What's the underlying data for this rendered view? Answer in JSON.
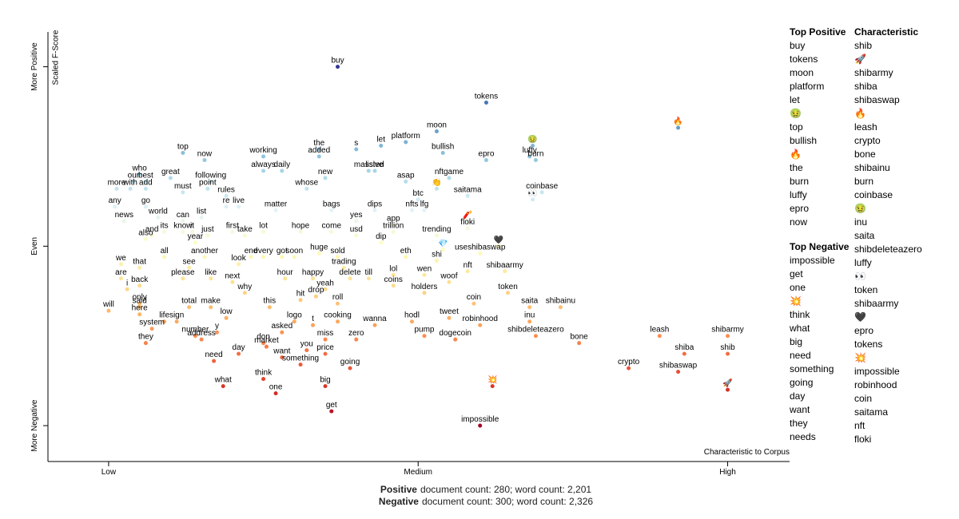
{
  "chart_data": {
    "type": "scatter",
    "ylabel": "Scaled F-Score",
    "xlabel": "Characteristic to Corpus",
    "xlim": [
      -0.098,
      1.1
    ],
    "ylim": [
      -0.1,
      1.097
    ],
    "xticks": [
      {
        "value": 0,
        "label": "Low"
      },
      {
        "value": 0.5,
        "label": "Medium"
      },
      {
        "value": 1,
        "label": "High"
      }
    ],
    "yticks": [
      {
        "value": 0,
        "label": "More Negative"
      },
      {
        "value": 0.5,
        "label": "Even"
      },
      {
        "value": 1,
        "label": "More Positive"
      }
    ],
    "grid": false,
    "color_scale": [
      "#a50026",
      "#d73027",
      "#f46d43",
      "#fdae61",
      "#fee090",
      "#ffffbf",
      "#e0f3f8",
      "#abd9e9",
      "#74add1",
      "#4575b4",
      "#313695"
    ],
    "labels": [
      "buy",
      "tokens",
      "moon",
      "platform",
      "bullish",
      "let",
      "s",
      "the",
      "added",
      "epro",
      "luffy",
      "🤢",
      "burn",
      "🔥",
      "top",
      "now",
      "who",
      "working",
      "always",
      "massive",
      "listed",
      "daily",
      "our",
      "best",
      "great",
      "following",
      "new",
      "asap",
      "nftgame",
      "add",
      "with",
      "point",
      "whose",
      "👏",
      "more",
      "must",
      "rules",
      "coinbase",
      "👀",
      "btc",
      "any",
      "go",
      "re",
      "live",
      "matter",
      "bags",
      "dips",
      "nfts",
      "lfg",
      "saitama",
      "world",
      "list",
      "can",
      "news",
      "yes",
      "app",
      "🧨",
      "know",
      "it",
      "its",
      "and",
      "also",
      "just",
      "first",
      "take",
      "lot",
      "hope",
      "come",
      "usd",
      "trillion",
      "dip",
      "trending",
      "floki",
      "🖤",
      "year",
      "all",
      "another",
      "end",
      "every",
      "got",
      "soon",
      "huge",
      "sold",
      "eth",
      "💎",
      "useshibaswap",
      "shi",
      "we",
      "that",
      "see",
      "look",
      "trading",
      "nft",
      "shibaarmy",
      "are",
      "please",
      "like",
      "next",
      "hour",
      "happy",
      "delete",
      "till",
      "lol",
      "wen",
      "i",
      "back",
      "woof",
      "yeah",
      "coins",
      "why",
      "holders",
      "hit",
      "drop",
      "token",
      "only",
      "roll",
      "coin",
      "will",
      "said",
      "total",
      "make",
      "this",
      "saita",
      "shibainu",
      "here",
      "low",
      "life",
      "sign",
      "logo",
      "t",
      "cooking",
      "hodl",
      "tweet",
      "inu",
      "robinhood",
      "system",
      "wanna",
      "asked",
      "y",
      "shibdeleteazero",
      "number",
      "address",
      "don",
      "miss",
      "zero",
      "dogecoin",
      "they",
      "pump",
      "bone",
      "leash",
      "shibarmy",
      "market",
      "want",
      "you",
      "price",
      "shiba",
      "shib",
      "need",
      "day",
      "crypto",
      "shibaswap",
      "something",
      "going",
      "think",
      "what",
      "big",
      "🚀",
      "💥",
      "one",
      "get",
      "impossible"
    ],
    "x": [
      0.37,
      0.61,
      0.53,
      0.48,
      0.54,
      0.44,
      0.4,
      0.34,
      0.34,
      0.61,
      0.68,
      0.685,
      0.69,
      0.92,
      0.12,
      0.155,
      0.05,
      0.25,
      0.25,
      0.42,
      0.43,
      0.28,
      0.04,
      0.06,
      0.1,
      0.165,
      0.35,
      0.48,
      0.55,
      0.06,
      0.035,
      0.16,
      0.32,
      0.53,
      0.013,
      0.12,
      0.19,
      0.7,
      0.685,
      0.5,
      0.01,
      0.06,
      0.19,
      0.21,
      0.27,
      0.36,
      0.43,
      0.49,
      0.51,
      0.58,
      0.08,
      0.15,
      0.12,
      0.025,
      0.4,
      0.46,
      0.58,
      0.12,
      0.135,
      0.09,
      0.07,
      0.06,
      0.16,
      0.2,
      0.22,
      0.25,
      0.31,
      0.36,
      0.4,
      0.46,
      0.44,
      0.53,
      0.58,
      0.63,
      0.14,
      0.09,
      0.155,
      0.23,
      0.25,
      0.28,
      0.3,
      0.34,
      0.37,
      0.48,
      0.54,
      0.6,
      0.53,
      0.02,
      0.05,
      0.13,
      0.21,
      0.38,
      0.58,
      0.64,
      0.02,
      0.12,
      0.165,
      0.2,
      0.285,
      0.33,
      0.39,
      0.42,
      0.46,
      0.51,
      0.03,
      0.05,
      0.55,
      0.35,
      0.46,
      0.22,
      0.51,
      0.31,
      0.335,
      0.645,
      0.05,
      0.37,
      0.59,
      0,
      0.05,
      0.13,
      0.165,
      0.26,
      0.68,
      0.73,
      0.05,
      0.19,
      0.09,
      0.11,
      0.3,
      0.33,
      0.37,
      0.49,
      0.55,
      0.68,
      0.6,
      0.07,
      0.43,
      0.28,
      0.175,
      0.69,
      0.14,
      0.15,
      0.25,
      0.35,
      0.4,
      0.56,
      0.06,
      0.51,
      0.76,
      0.89,
      1.0,
      0.255,
      0.28,
      0.32,
      0.35,
      0.93,
      1.0,
      0.17,
      0.21,
      0.84,
      0.92,
      0.31,
      0.39,
      0.25,
      0.185,
      0.35,
      1.0,
      0.62,
      0.27,
      0.36,
      0.6
    ],
    "values": [
      1.0,
      0.9,
      0.82,
      0.79,
      0.76,
      0.78,
      0.77,
      0.77,
      0.75,
      0.74,
      0.75,
      0.78,
      0.74,
      0.83,
      0.76,
      0.74,
      0.7,
      0.75,
      0.71,
      0.71,
      0.71,
      0.71,
      0.68,
      0.68,
      0.69,
      0.68,
      0.69,
      0.68,
      0.69,
      0.66,
      0.66,
      0.66,
      0.66,
      0.66,
      0.66,
      0.65,
      0.64,
      0.65,
      0.63,
      0.63,
      0.61,
      0.61,
      0.61,
      0.61,
      0.6,
      0.6,
      0.6,
      0.6,
      0.6,
      0.64,
      0.58,
      0.58,
      0.57,
      0.57,
      0.57,
      0.56,
      0.57,
      0.54,
      0.54,
      0.54,
      0.53,
      0.52,
      0.53,
      0.54,
      0.53,
      0.54,
      0.54,
      0.54,
      0.53,
      0.54,
      0.51,
      0.53,
      0.55,
      0.5,
      0.51,
      0.47,
      0.47,
      0.47,
      0.47,
      0.47,
      0.47,
      0.48,
      0.47,
      0.47,
      0.49,
      0.48,
      0.46,
      0.45,
      0.44,
      0.44,
      0.45,
      0.44,
      0.43,
      0.43,
      0.41,
      0.41,
      0.41,
      0.4,
      0.41,
      0.41,
      0.41,
      0.41,
      0.42,
      0.42,
      0.38,
      0.39,
      0.4,
      0.38,
      0.39,
      0.37,
      0.37,
      0.35,
      0.36,
      0.37,
      0.34,
      0.34,
      0.34,
      0.32,
      0.33,
      0.33,
      0.33,
      0.33,
      0.33,
      0.33,
      0.31,
      0.3,
      0.29,
      0.29,
      0.29,
      0.28,
      0.29,
      0.29,
      0.3,
      0.29,
      0.28,
      0.27,
      0.28,
      0.26,
      0.26,
      0.25,
      0.25,
      0.24,
      0.23,
      0.24,
      0.24,
      0.24,
      0.23,
      0.25,
      0.23,
      0.25,
      0.25,
      0.22,
      0.19,
      0.21,
      0.2,
      0.2,
      0.2,
      0.18,
      0.2,
      0.16,
      0.15,
      0.17,
      0.16,
      0.13,
      0.11,
      0.11,
      0.1,
      0.11,
      0.09,
      0.04,
      0.0
    ]
  },
  "sidebar": {
    "top_positive": {
      "title": "Top Positive",
      "terms": [
        "buy",
        "tokens",
        "moon",
        "platform",
        "let",
        "🤢",
        "top",
        "bullish",
        "🔥",
        "the",
        "burn",
        "luffy",
        "epro",
        "now"
      ]
    },
    "characteristic": {
      "title": "Characteristic",
      "terms": [
        "shib",
        "🚀",
        "shibarmy",
        "shiba",
        "shibaswap",
        "🔥",
        "leash",
        "crypto",
        "bone",
        "shibainu",
        "burn",
        "coinbase",
        "🤢",
        "inu",
        "saita",
        "shibdeleteazero",
        "luffy",
        "👀",
        "token",
        "shibaarmy",
        "🖤",
        "epro",
        "tokens",
        "💥",
        "impossible",
        "robinhood",
        "coin",
        "saitama",
        "nft",
        "floki"
      ]
    },
    "top_negative": {
      "title": "Top Negative",
      "terms": [
        "impossible",
        "get",
        "one",
        "💥",
        "think",
        "what",
        "big",
        "need",
        "something",
        "going",
        "day",
        "want",
        "they",
        "needs"
      ]
    }
  },
  "footer": [
    {
      "bold": "Positive",
      "text": "document count: 280; word count: 2,201"
    },
    {
      "bold": "Negative",
      "text": "document count: 300; word count: 2,326"
    }
  ]
}
